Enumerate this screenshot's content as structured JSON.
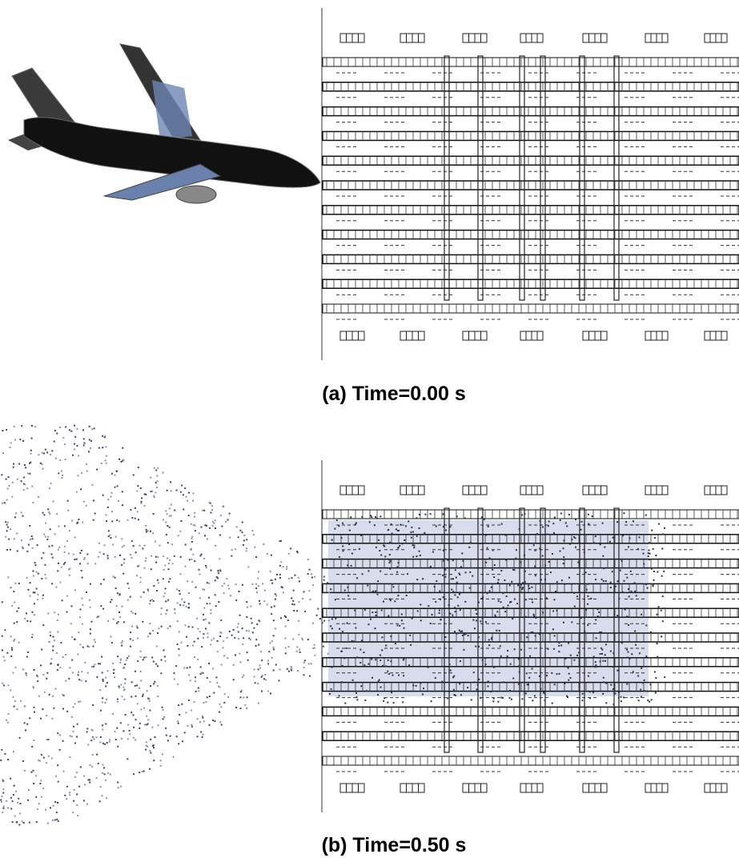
{
  "panels": [
    {
      "caption": "(a) Time=0.00 s"
    },
    {
      "caption": "(b) Time=0.50 s"
    }
  ]
}
